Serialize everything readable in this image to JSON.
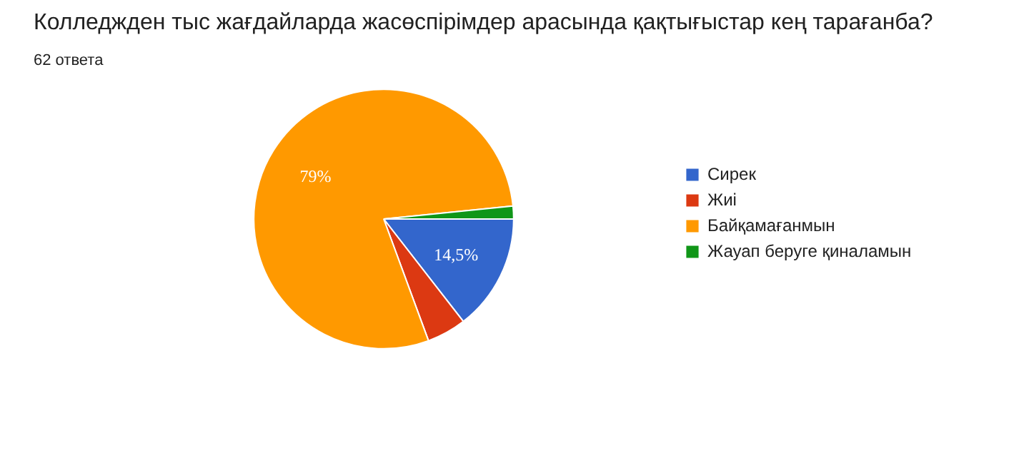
{
  "chart_data": {
    "type": "pie",
    "title": "Колледжден тыс жағдайларда жасөспірімдер арасында қақтығыстар кең тарағанба?",
    "subtitle": "62 ответа",
    "categories": [
      "Сирек",
      "Жиі",
      "Байқамағанмын",
      "Жауап беруге қиналамын"
    ],
    "values": [
      14.5,
      4.9,
      79,
      1.6
    ],
    "colors": [
      "#3366cc",
      "#dc3912",
      "#ff9900",
      "#109618"
    ],
    "value_labels": [
      "14,5%",
      null,
      "79%",
      null
    ],
    "legend": "right"
  }
}
